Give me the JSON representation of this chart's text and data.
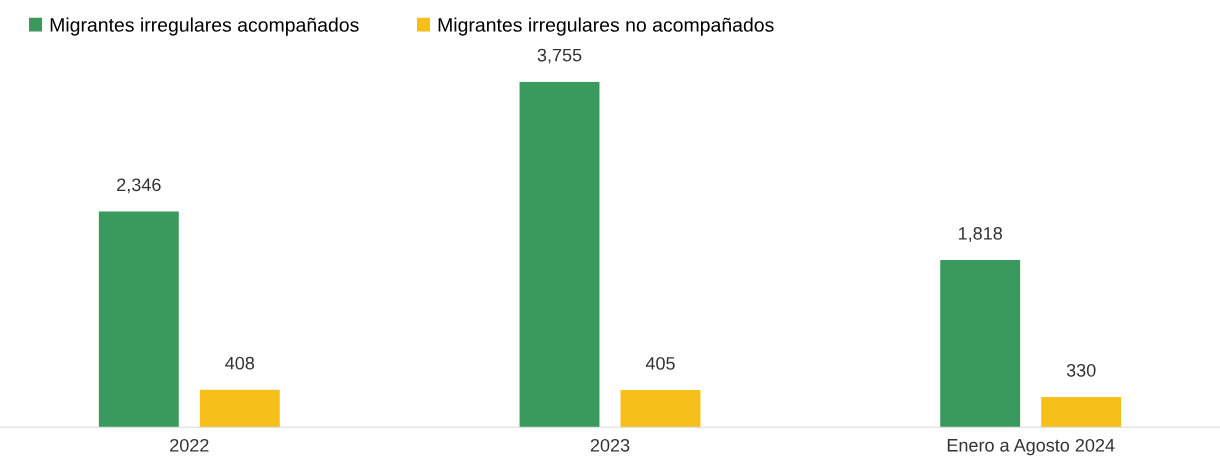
{
  "chart_data": {
    "type": "bar",
    "categories": [
      "2022",
      "2023",
      "Enero a Agosto 2024"
    ],
    "series": [
      {
        "name": "Migrantes irregulares acompañados",
        "color": "#3a9a5e",
        "values": [
          2346,
          3755,
          1818
        ],
        "value_labels": [
          "2,346",
          "3,755",
          "1,818"
        ]
      },
      {
        "name": "Migrantes irregulares no acompañados",
        "color": "#f7bf1a",
        "values": [
          408,
          405,
          330
        ],
        "value_labels": [
          "408",
          "405",
          "330"
        ]
      }
    ],
    "legend": "top left",
    "grid": false,
    "tick_labels": "x"
  }
}
